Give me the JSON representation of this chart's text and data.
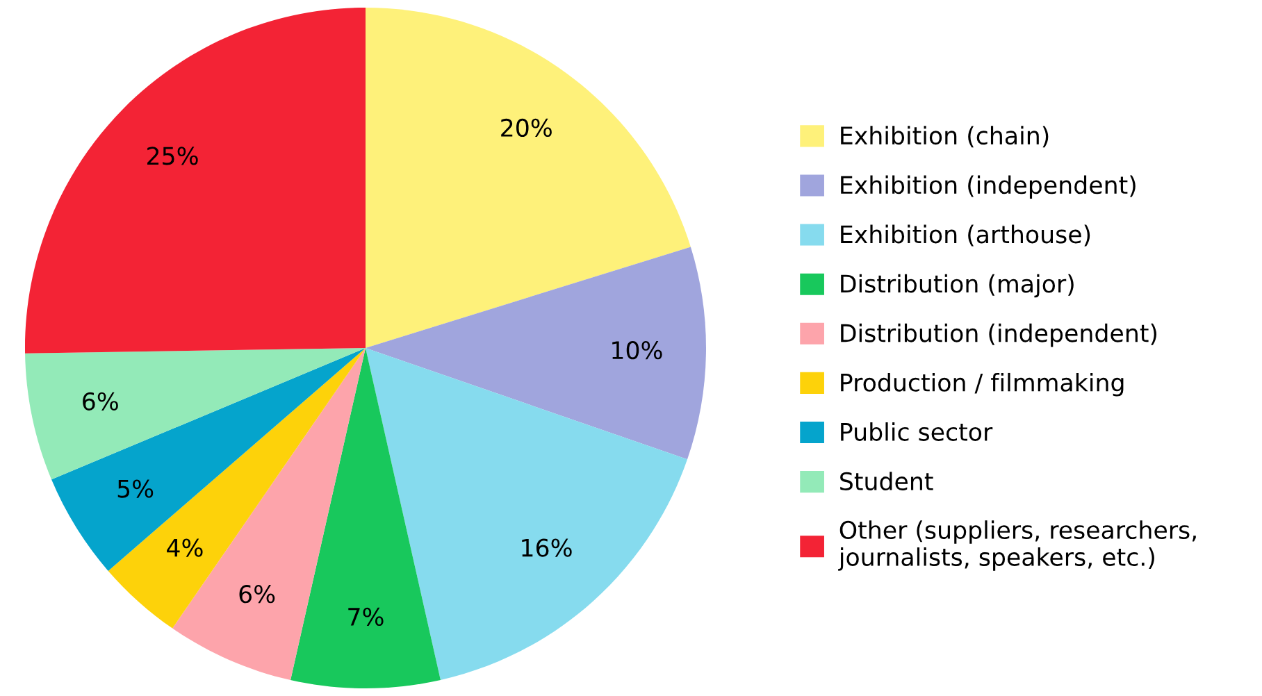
{
  "chart_data": {
    "type": "pie",
    "categories": [
      "Exhibition (chain)",
      "Exhibition (independent)",
      "Exhibition (arthouse)",
      "Distribution (major)",
      "Distribution (independent)",
      "Production / filmmaking",
      "Public sector",
      "Student",
      "Other (suppliers, researchers,\njournalists, speakers, etc.)"
    ],
    "values": [
      20,
      10,
      16,
      7,
      6,
      4,
      5,
      6,
      25
    ],
    "value_labels": [
      "20%",
      "10%",
      "16%",
      "7%",
      "6%",
      "4%",
      "5%",
      "6%",
      "25%"
    ],
    "colors": [
      "#fef17a",
      "#a0a5dd",
      "#86dbee",
      "#18c85c",
      "#fda4ab",
      "#fdd20a",
      "#05a4cc",
      "#93eab8",
      "#f32335"
    ],
    "legend": "right"
  }
}
